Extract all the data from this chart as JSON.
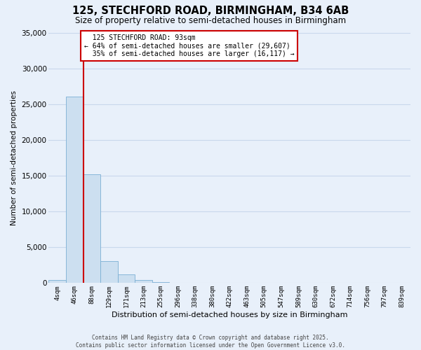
{
  "title": "125, STECHFORD ROAD, BIRMINGHAM, B34 6AB",
  "subtitle": "Size of property relative to semi-detached houses in Birmingham",
  "xlabel": "Distribution of semi-detached houses by size in Birmingham",
  "ylabel": "Number of semi-detached properties",
  "bar_labels": [
    "4sqm",
    "46sqm",
    "88sqm",
    "129sqm",
    "171sqm",
    "213sqm",
    "255sqm",
    "296sqm",
    "338sqm",
    "380sqm",
    "422sqm",
    "463sqm",
    "505sqm",
    "547sqm",
    "589sqm",
    "630sqm",
    "672sqm",
    "714sqm",
    "756sqm",
    "797sqm",
    "839sqm"
  ],
  "bar_values": [
    400,
    26100,
    15200,
    3100,
    1200,
    400,
    100,
    0,
    0,
    0,
    0,
    0,
    0,
    0,
    0,
    0,
    0,
    0,
    0,
    0,
    0
  ],
  "bar_color": "#ccdff0",
  "bar_edge_color": "#7bafd4",
  "grid_color": "#c8d8ec",
  "background_color": "#e8f0fa",
  "property_line_x": 2,
  "property_label": "125 STECHFORD ROAD: 93sqm",
  "pct_smaller": 64,
  "pct_larger": 35,
  "count_smaller": 29607,
  "count_larger": 16117,
  "annotation_box_color": "#ffffff",
  "annotation_box_edge": "#cc0000",
  "vline_color": "#cc0000",
  "ylim": [
    0,
    35000
  ],
  "yticks": [
    0,
    5000,
    10000,
    15000,
    20000,
    25000,
    30000,
    35000
  ],
  "copyright_line1": "Contains HM Land Registry data © Crown copyright and database right 2025.",
  "copyright_line2": "Contains public sector information licensed under the Open Government Licence v3.0."
}
